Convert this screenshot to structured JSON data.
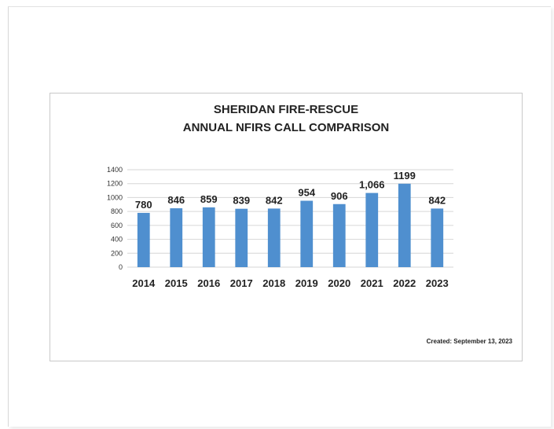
{
  "chart_data": {
    "type": "bar",
    "title": "SHERIDAN FIRE-RESCUE",
    "subtitle": "ANNUAL NFIRS CALL COMPARISON",
    "categories": [
      "2014",
      "2015",
      "2016",
      "2017",
      "2018",
      "2019",
      "2020",
      "2021",
      "2022",
      "2023"
    ],
    "values": [
      780,
      846,
      859,
      839,
      842,
      954,
      906,
      1066,
      1199,
      842
    ],
    "data_labels": [
      "780",
      "846",
      "859",
      "839",
      "842",
      "954",
      "906",
      "1,066",
      "1199",
      "842"
    ],
    "ylim": [
      0,
      1400
    ],
    "yticks": [
      "0",
      "200",
      "400",
      "600",
      "800",
      "1000",
      "1200",
      "1400"
    ],
    "grid": true,
    "bar_color": "#4f8fcf",
    "grid_color": "#d6d6d6"
  },
  "footer": {
    "created": "Created:  September 13, 2023"
  }
}
